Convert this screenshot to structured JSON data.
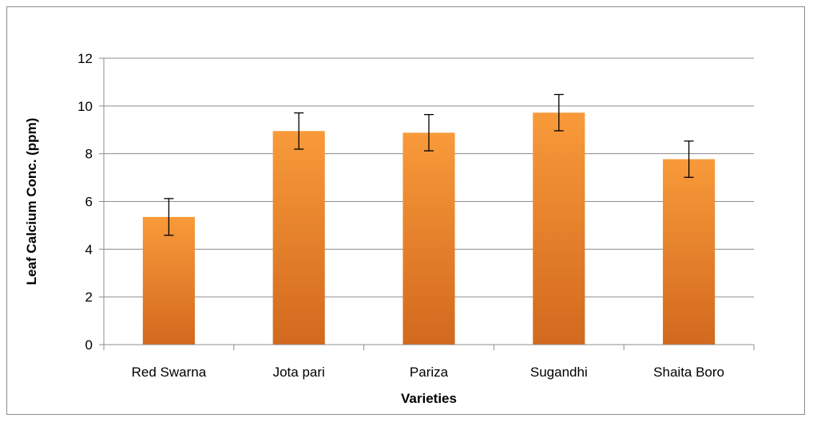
{
  "chart_data": {
    "type": "bar",
    "categories": [
      "Red Swarna",
      "Jota pari",
      "Pariza",
      "Sugandhi",
      "Shaita Boro"
    ],
    "values": [
      5.35,
      8.95,
      8.88,
      9.72,
      7.77
    ],
    "error": [
      0.77,
      0.76,
      0.76,
      0.76,
      0.76
    ],
    "title": "",
    "xlabel": "Varieties",
    "ylabel": "Leaf  Calcium Conc. (ppm)",
    "ylim": [
      0,
      12
    ],
    "yticks": [
      0,
      2,
      4,
      6,
      8,
      10,
      12
    ],
    "grid": true,
    "legend": "none",
    "colors": {
      "bar_top": "#f89a3a",
      "bar_bottom": "#d2691e",
      "grid": "#8c8c8c",
      "axis": "#8c8c8c",
      "error_bar": "#000000"
    }
  }
}
